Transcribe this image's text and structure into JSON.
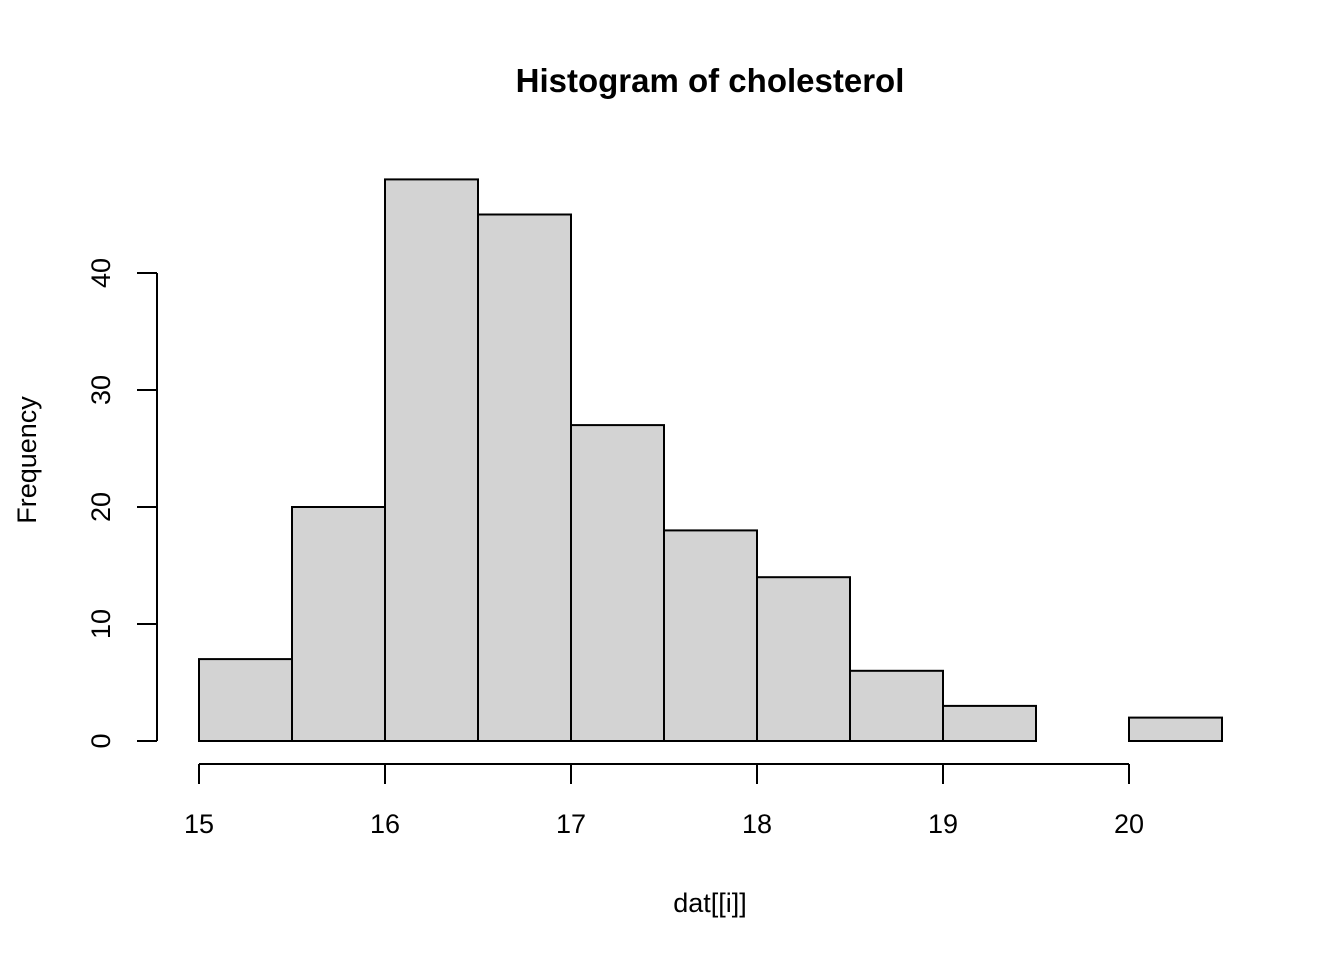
{
  "chart_data": {
    "type": "bar",
    "title": "Histogram of cholesterol",
    "xlabel": "dat[[i]]",
    "ylabel": "Frequency",
    "bin_edges": [
      15,
      15.5,
      16,
      16.5,
      17,
      17.5,
      18,
      18.5,
      19,
      19.5,
      20,
      20.5
    ],
    "values": [
      7,
      20,
      48,
      45,
      27,
      18,
      14,
      6,
      3,
      0,
      2
    ],
    "xlim": [
      15,
      20.5
    ],
    "ylim": [
      0,
      48
    ],
    "x_ticks": [
      "15",
      "16",
      "17",
      "18",
      "19",
      "20"
    ],
    "y_ticks": [
      "0",
      "10",
      "20",
      "30",
      "40"
    ],
    "grid": false,
    "bar_color": "#d3d3d3",
    "edge_color": "#000000"
  }
}
